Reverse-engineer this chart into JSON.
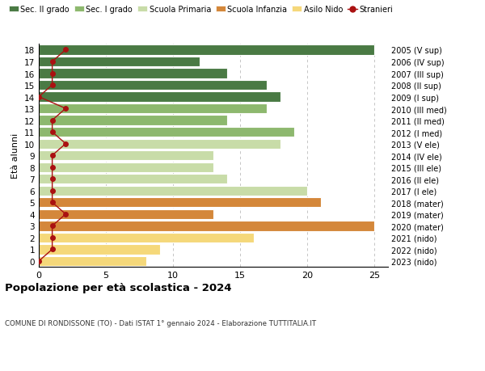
{
  "ages": [
    0,
    1,
    2,
    3,
    4,
    5,
    6,
    7,
    8,
    9,
    10,
    11,
    12,
    13,
    14,
    15,
    16,
    17,
    18
  ],
  "bar_values": [
    8,
    9,
    16,
    25,
    13,
    21,
    20,
    14,
    13,
    13,
    18,
    19,
    14,
    17,
    18,
    17,
    14,
    12,
    25
  ],
  "bar_colors": [
    "#f5d87a",
    "#f5d87a",
    "#f5d87a",
    "#d4873a",
    "#d4873a",
    "#d4873a",
    "#c8dca8",
    "#c8dca8",
    "#c8dca8",
    "#c8dca8",
    "#c8dca8",
    "#8db86e",
    "#8db86e",
    "#8db86e",
    "#4a7a44",
    "#4a7a44",
    "#4a7a44",
    "#4a7a44",
    "#4a7a44"
  ],
  "stranieri_values": [
    0,
    1,
    1,
    1,
    2,
    1,
    1,
    1,
    1,
    1,
    2,
    1,
    1,
    2,
    0,
    1,
    1,
    1,
    2
  ],
  "right_labels": [
    "2023 (nido)",
    "2022 (nido)",
    "2021 (nido)",
    "2020 (mater)",
    "2019 (mater)",
    "2018 (mater)",
    "2017 (I ele)",
    "2016 (II ele)",
    "2015 (III ele)",
    "2014 (IV ele)",
    "2013 (V ele)",
    "2012 (I med)",
    "2011 (II med)",
    "2010 (III med)",
    "2009 (I sup)",
    "2008 (II sup)",
    "2007 (III sup)",
    "2006 (IV sup)",
    "2005 (V sup)"
  ],
  "legend_labels": [
    "Sec. II grado",
    "Sec. I grado",
    "Scuola Primaria",
    "Scuola Infanzia",
    "Asilo Nido",
    "Stranieri"
  ],
  "legend_colors": [
    "#4a7a44",
    "#8db86e",
    "#c8dca8",
    "#d4873a",
    "#f5d87a",
    "#aa1111"
  ],
  "ylabel": "Età alunni",
  "title": "Popolazione per età scolastica - 2024",
  "subtitle": "COMUNE DI RONDISSONE (TO) - Dati ISTAT 1° gennaio 2024 - Elaborazione TUTTITALIA.IT",
  "background_color": "#ffffff",
  "grid_color": "#bbbbbb",
  "bar_edge_color": "#ffffff"
}
